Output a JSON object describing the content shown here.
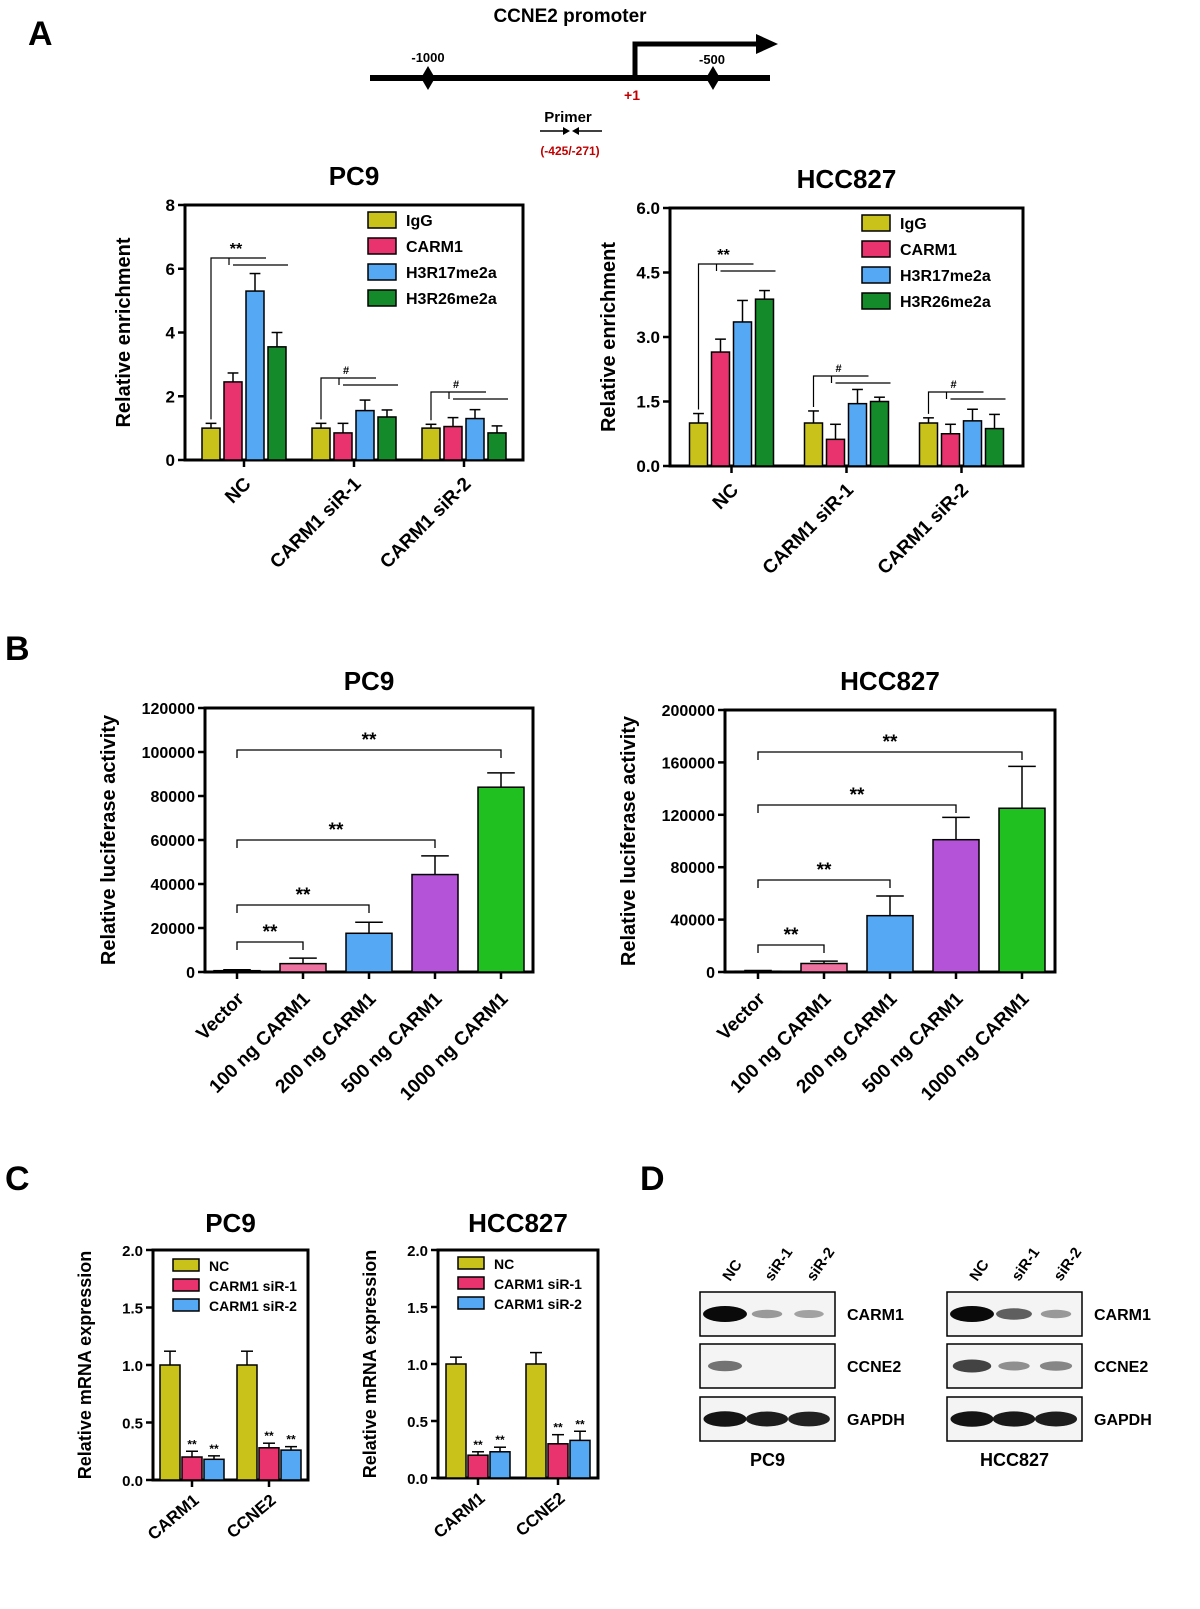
{
  "panels": {
    "A": "A",
    "B": "B",
    "C": "C",
    "D": "D"
  },
  "promoter": {
    "title": "CCNE2 promoter",
    "pos_left": "-1000",
    "pos_right": "-500",
    "tss": "+1",
    "primer_label": "Primer",
    "primer_range": "(-425/-271)",
    "colors": {
      "tss": "#c00000",
      "range": "#c00000"
    }
  },
  "colors": {
    "IgG": "#c8c21a",
    "CARM1": "#e8336f",
    "H3R17me2a": "#55a8f3",
    "H3R26me2a": "#158a2a",
    "Vector": "#c8c21a",
    "100": "#ee72a0",
    "200": "#55a8f3",
    "500": "#b452d8",
    "1000": "#20c020"
  },
  "chart_data": [
    {
      "id": "A1",
      "type": "bar",
      "title": "PC9",
      "ylabel": "Relative enrichment",
      "ylim": [
        0,
        8
      ],
      "yticks": [
        "0",
        "2",
        "4",
        "6",
        "8"
      ],
      "categories": [
        "NC",
        "CARM1 siR-1",
        "CARM1 siR-2"
      ],
      "series": [
        {
          "name": "IgG",
          "values": [
            1.0,
            1.0,
            1.0
          ],
          "errors": [
            0.15,
            0.15,
            0.12
          ]
        },
        {
          "name": "CARM1",
          "values": [
            2.45,
            0.85,
            1.05
          ],
          "errors": [
            0.28,
            0.3,
            0.28
          ]
        },
        {
          "name": "H3R17me2a",
          "values": [
            5.3,
            1.55,
            1.3
          ],
          "errors": [
            0.55,
            0.33,
            0.28
          ]
        },
        {
          "name": "H3R26me2a",
          "values": [
            3.55,
            1.35,
            0.85
          ],
          "errors": [
            0.45,
            0.22,
            0.22
          ]
        }
      ],
      "significance": [
        "**",
        "#",
        "#"
      ]
    },
    {
      "id": "A2",
      "type": "bar",
      "title": "HCC827",
      "ylabel": "Relative enrichment",
      "ylim": [
        0,
        6
      ],
      "yticks": [
        "0.0",
        "1.5",
        "3.0",
        "4.5",
        "6.0"
      ],
      "categories": [
        "NC",
        "CARM1 siR-1",
        "CARM1 siR-2"
      ],
      "series": [
        {
          "name": "IgG",
          "values": [
            1.0,
            1.0,
            1.0
          ],
          "errors": [
            0.22,
            0.28,
            0.12
          ]
        },
        {
          "name": "CARM1",
          "values": [
            2.65,
            0.62,
            0.75
          ],
          "errors": [
            0.3,
            0.35,
            0.22
          ]
        },
        {
          "name": "H3R17me2a",
          "values": [
            3.35,
            1.45,
            1.05
          ],
          "errors": [
            0.5,
            0.33,
            0.27
          ]
        },
        {
          "name": "H3R26me2a",
          "values": [
            3.88,
            1.5,
            0.87
          ],
          "errors": [
            0.2,
            0.1,
            0.33
          ]
        }
      ],
      "significance": [
        "**",
        "#",
        "#"
      ]
    },
    {
      "id": "B1",
      "type": "bar",
      "title": "PC9",
      "ylabel": "Relative luciferase activity",
      "ylim": [
        0,
        120000
      ],
      "yticks": [
        "0",
        "20000",
        "40000",
        "60000",
        "80000",
        "100000",
        "120000"
      ],
      "categories": [
        "Vector",
        "100 ng CARM1",
        "200 ng CARM1",
        "500 ng CARM1",
        "1000 ng CARM1"
      ],
      "values": [
        600,
        3800,
        17600,
        44300,
        84000
      ],
      "errors": [
        400,
        2500,
        5000,
        8500,
        6500
      ],
      "significance": [
        "**",
        "**",
        "**",
        "**"
      ]
    },
    {
      "id": "B2",
      "type": "bar",
      "title": "HCC827",
      "ylabel": "Relative luciferase activity",
      "ylim": [
        0,
        200000
      ],
      "yticks": [
        "0",
        "40000",
        "80000",
        "120000",
        "160000",
        "200000"
      ],
      "categories": [
        "Vector",
        "100 ng CARM1",
        "200 ng CARM1",
        "500 ng CARM1",
        "1000 ng CARM1"
      ],
      "values": [
        600,
        6500,
        43000,
        101000,
        125000
      ],
      "errors": [
        500,
        1800,
        15000,
        17000,
        32000
      ],
      "significance": [
        "**",
        "**",
        "**",
        "**"
      ]
    },
    {
      "id": "C1",
      "type": "bar",
      "title": "PC9",
      "ylabel": "Relative mRNA expression",
      "ylim": [
        0,
        2
      ],
      "yticks": [
        "0.0",
        "0.5",
        "1.0",
        "1.5",
        "2.0"
      ],
      "categories": [
        "CARM1",
        "CCNE2"
      ],
      "series": [
        {
          "name": "NC",
          "values": [
            1.0,
            1.0
          ],
          "errors": [
            0.12,
            0.12
          ]
        },
        {
          "name": "CARM1 siR-1",
          "values": [
            0.2,
            0.28
          ],
          "errors": [
            0.05,
            0.04
          ]
        },
        {
          "name": "CARM1 siR-2",
          "values": [
            0.18,
            0.26
          ],
          "errors": [
            0.03,
            0.03
          ]
        }
      ],
      "significance": [
        "**",
        "**",
        "**",
        "**"
      ]
    },
    {
      "id": "C2",
      "type": "bar",
      "title": "HCC827",
      "ylabel": "Relative mRNA expression",
      "ylim": [
        0,
        2
      ],
      "yticks": [
        "0.0",
        "0.5",
        "1.0",
        "1.5",
        "2.0"
      ],
      "categories": [
        "CARM1",
        "CCNE2"
      ],
      "series": [
        {
          "name": "NC",
          "values": [
            1.0,
            1.0
          ],
          "errors": [
            0.06,
            0.1
          ]
        },
        {
          "name": "CARM1 siR-1",
          "values": [
            0.2,
            0.3
          ],
          "errors": [
            0.03,
            0.08
          ]
        },
        {
          "name": "CARM1 siR-2",
          "values": [
            0.23,
            0.33
          ],
          "errors": [
            0.04,
            0.08
          ]
        }
      ],
      "significance": [
        "**",
        "**",
        "**",
        "**"
      ]
    }
  ],
  "blots": {
    "lanes": [
      "NC",
      "siR-1",
      "siR-2"
    ],
    "proteins": [
      "CARM1",
      "CCNE2",
      "GAPDH"
    ],
    "cell_lines": [
      "PC9",
      "HCC827"
    ]
  }
}
